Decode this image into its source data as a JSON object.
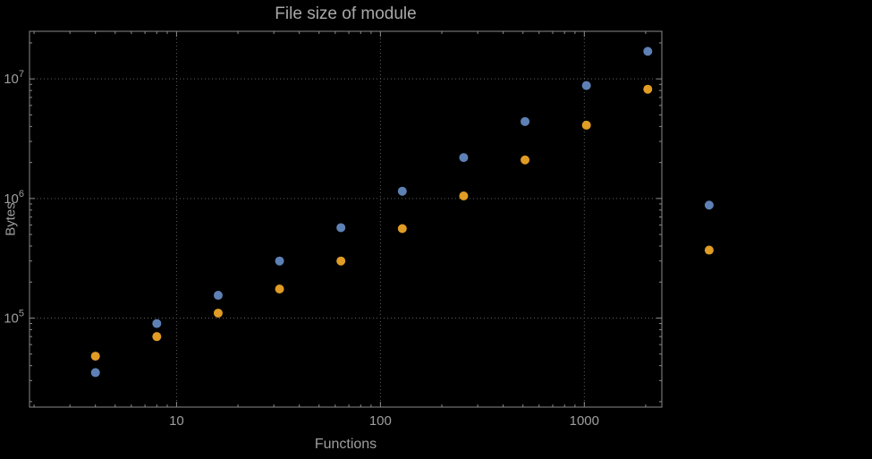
{
  "chart_data": {
    "type": "scatter",
    "title": "File size of module",
    "xlabel": "Functions",
    "ylabel": "Bytes",
    "x_scale": "log",
    "y_scale": "log",
    "grid": "dotted",
    "legend": "none",
    "x": [
      4,
      8,
      16,
      32,
      64,
      128,
      256,
      512,
      1024,
      2048,
      4096
    ],
    "series": [
      {
        "name": "blue-series",
        "color": "#5e81b5",
        "values": [
          35000,
          90000,
          155000,
          300000,
          570000,
          1150000,
          2200000,
          4400000,
          8800000,
          17000000,
          880000
        ]
      },
      {
        "name": "orange-series",
        "color": "#e09c24",
        "values": [
          48000,
          70000,
          110000,
          175000,
          300000,
          560000,
          1050000,
          2100000,
          4100000,
          8200000,
          370000
        ]
      }
    ],
    "x_ticks": [
      10,
      100,
      1000
    ],
    "x_tick_labels": [
      "10",
      "100",
      "1000"
    ],
    "y_ticks": [
      100000,
      1000000,
      10000000
    ],
    "y_tick_base": "10",
    "y_tick_exponents": [
      "5",
      "6",
      "7"
    ],
    "xlim": [
      1.9,
      2400
    ],
    "ylim": [
      18000,
      25000000
    ],
    "colors": {
      "background": "#000000",
      "frame": "#8a8a8a",
      "grid": "#5f5f5f",
      "labels": "#9e9e9e",
      "title": "#a8a8a8"
    }
  }
}
